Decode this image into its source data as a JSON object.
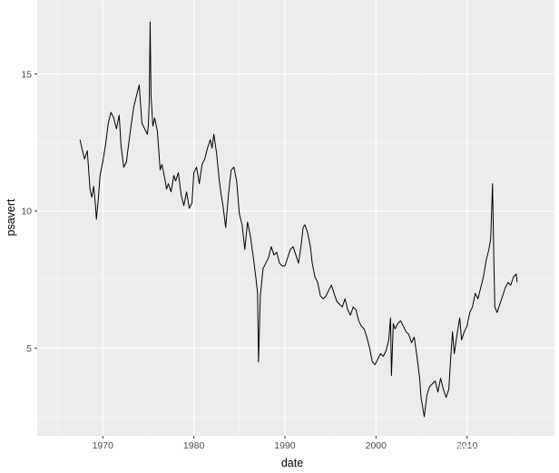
{
  "chart_data": {
    "type": "line",
    "title": "",
    "xlabel": "date",
    "ylabel": "psavert",
    "xlim": [
      1962.8,
      2019.6
    ],
    "ylim": [
      1.8,
      17.7
    ],
    "x_ticks": [
      1970,
      1980,
      1990,
      2000,
      2010
    ],
    "x_tick_labels": [
      "1970",
      "1980",
      "1990",
      "2000",
      "2010"
    ],
    "y_ticks": [
      5,
      10,
      15
    ],
    "y_tick_labels": [
      "5",
      "10",
      "15"
    ],
    "grid": true,
    "legend": "none",
    "series": [
      {
        "x": [
          1967.5,
          1967.7,
          1968.0,
          1968.3,
          1968.6,
          1968.8,
          1969.0,
          1969.2,
          1969.3,
          1969.5,
          1969.7,
          1970.0,
          1970.3,
          1970.6,
          1970.9,
          1971.2,
          1971.5,
          1971.8,
          1972.0,
          1972.3,
          1972.6,
          1972.9,
          1973.1,
          1973.4,
          1973.7,
          1974.0,
          1974.3,
          1974.6,
          1974.9,
          1975.0,
          1975.1,
          1975.2,
          1975.3,
          1975.5,
          1975.7,
          1976.0,
          1976.3,
          1976.5,
          1976.8,
          1977.0,
          1977.2,
          1977.5,
          1977.8,
          1978.0,
          1978.3,
          1978.6,
          1978.9,
          1979.2,
          1979.5,
          1979.8,
          1980.0,
          1980.3,
          1980.6,
          1980.9,
          1981.2,
          1981.5,
          1981.8,
          1982.0,
          1982.2,
          1982.5,
          1982.8,
          1983.0,
          1983.2,
          1983.5,
          1983.8,
          1984.1,
          1984.4,
          1984.7,
          1985.0,
          1985.3,
          1985.6,
          1985.9,
          1986.2,
          1986.5,
          1986.8,
          1987.0,
          1987.1,
          1987.3,
          1987.6,
          1987.9,
          1988.2,
          1988.5,
          1988.8,
          1989.1,
          1989.4,
          1989.7,
          1990.0,
          1990.3,
          1990.6,
          1990.9,
          1991.2,
          1991.5,
          1991.8,
          1992.0,
          1992.2,
          1992.5,
          1992.8,
          1993.0,
          1993.3,
          1993.6,
          1993.9,
          1994.2,
          1994.5,
          1994.8,
          1995.1,
          1995.4,
          1995.7,
          1996.0,
          1996.3,
          1996.6,
          1996.9,
          1997.2,
          1997.5,
          1997.8,
          1998.1,
          1998.4,
          1998.7,
          1999.0,
          1999.3,
          1999.6,
          1999.9,
          2000.2,
          2000.5,
          2000.8,
          2001.1,
          2001.4,
          2001.6,
          2001.7,
          2001.9,
          2002.1,
          2002.4,
          2002.7,
          2003.0,
          2003.3,
          2003.6,
          2003.9,
          2004.2,
          2004.5,
          2004.8,
          2004.95,
          2005.1,
          2005.3,
          2005.6,
          2005.9,
          2006.2,
          2006.5,
          2006.8,
          2007.1,
          2007.4,
          2007.7,
          2008.0,
          2008.2,
          2008.4,
          2008.6,
          2008.9,
          2009.2,
          2009.4,
          2009.7,
          2010.0,
          2010.3,
          2010.6,
          2010.9,
          2011.2,
          2011.5,
          2011.8,
          2012.1,
          2012.4,
          2012.6,
          2012.8,
          2012.95,
          2013.05,
          2013.3,
          2013.6,
          2013.9,
          2014.2,
          2014.5,
          2014.8,
          2015.1,
          2015.4,
          2015.5
        ],
        "y": [
          12.6,
          12.3,
          11.9,
          12.2,
          10.8,
          10.5,
          10.9,
          10.2,
          9.7,
          10.4,
          11.3,
          11.8,
          12.4,
          13.2,
          13.6,
          13.4,
          13.0,
          13.5,
          12.4,
          11.6,
          11.8,
          12.6,
          13.1,
          13.8,
          14.2,
          14.6,
          13.2,
          13.0,
          12.8,
          13.1,
          14.0,
          16.9,
          14.2,
          13.1,
          13.4,
          12.9,
          11.5,
          11.7,
          11.2,
          10.8,
          11.0,
          10.7,
          11.3,
          11.1,
          11.4,
          10.6,
          10.2,
          10.7,
          10.1,
          10.3,
          11.4,
          11.6,
          11.0,
          11.7,
          11.9,
          12.3,
          12.6,
          12.3,
          12.8,
          12.1,
          11.1,
          10.6,
          10.2,
          9.4,
          10.6,
          11.5,
          11.6,
          11.1,
          9.9,
          9.5,
          8.6,
          9.6,
          9.1,
          8.4,
          7.6,
          7.0,
          4.5,
          6.9,
          7.9,
          8.1,
          8.3,
          8.7,
          8.4,
          8.5,
          8.1,
          8.0,
          8.0,
          8.3,
          8.6,
          8.7,
          8.4,
          8.1,
          8.8,
          9.4,
          9.5,
          9.2,
          8.7,
          8.1,
          7.6,
          7.4,
          6.9,
          6.8,
          6.9,
          7.1,
          7.3,
          7.0,
          6.7,
          6.6,
          6.5,
          6.8,
          6.4,
          6.2,
          6.5,
          6.4,
          6.0,
          5.8,
          5.7,
          5.4,
          5.0,
          4.5,
          4.4,
          4.6,
          4.8,
          4.7,
          4.9,
          5.3,
          6.1,
          4.0,
          5.9,
          5.7,
          5.9,
          6.0,
          5.8,
          5.6,
          5.5,
          5.2,
          5.4,
          4.7,
          3.9,
          3.2,
          2.9,
          2.5,
          3.3,
          3.6,
          3.7,
          3.8,
          3.4,
          3.9,
          3.5,
          3.2,
          3.5,
          4.6,
          5.6,
          4.8,
          5.5,
          6.1,
          5.3,
          5.6,
          5.8,
          6.3,
          6.5,
          7.0,
          6.8,
          7.2,
          7.6,
          8.2,
          8.6,
          9.0,
          11.0,
          8.1,
          6.5,
          6.3,
          6.6,
          6.9,
          7.2,
          7.4,
          7.3,
          7.6,
          7.7,
          7.4
        ]
      }
    ]
  },
  "colors": {
    "panel_background": "#ebebeb",
    "major_grid": "#ffffff",
    "minor_grid": "#f5f5f5",
    "line": "#000000",
    "tick_text": "#4d4d4d",
    "axis_title": "#000000",
    "tick_mark": "#333333"
  },
  "watermark": {
    "text": "知乎 @sy写字的地方"
  }
}
